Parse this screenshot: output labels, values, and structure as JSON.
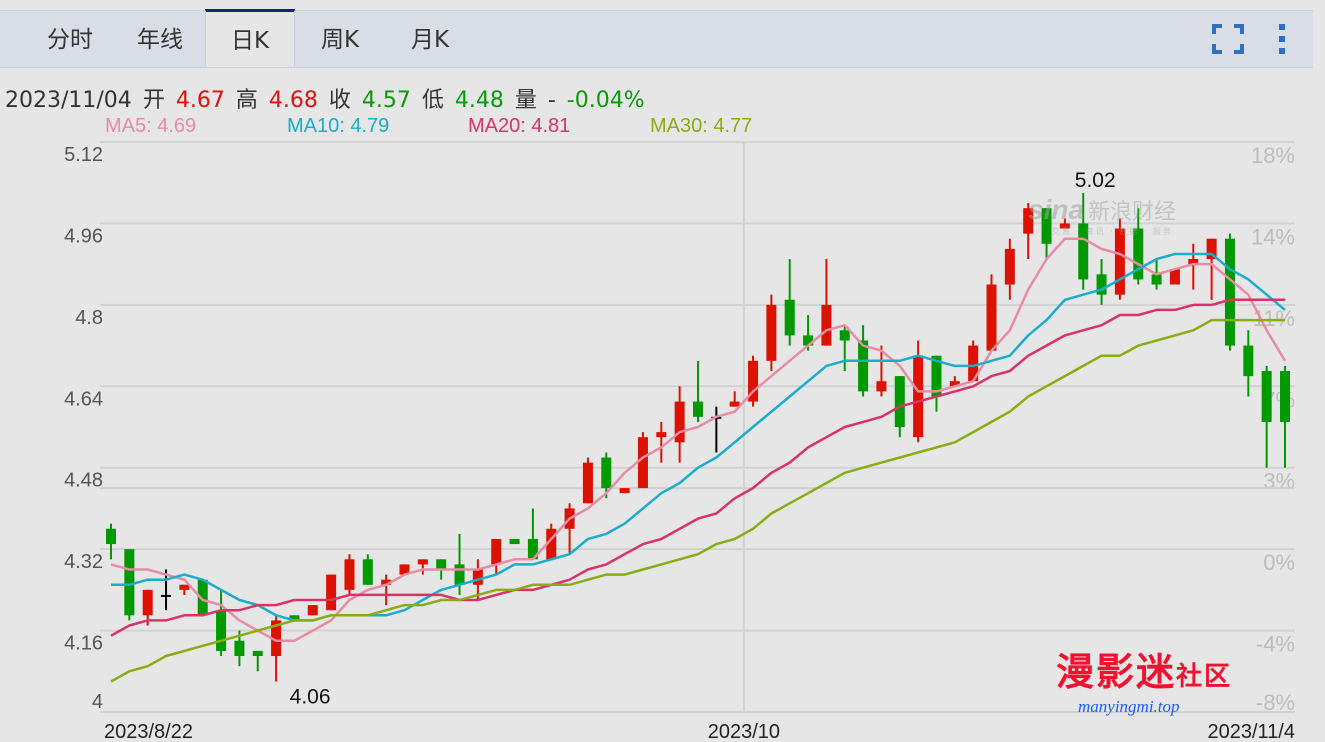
{
  "tabs": [
    {
      "label": "分时",
      "active": false
    },
    {
      "label": "年线",
      "active": false
    },
    {
      "label": "日K",
      "active": true
    },
    {
      "label": "周K",
      "active": false
    },
    {
      "label": "月K",
      "active": false
    }
  ],
  "toolbar": {
    "fullscreen_icon": "fullscreen-icon",
    "more_icon": "kebab-menu-icon",
    "icon_color": "#2f6fc1"
  },
  "info": {
    "date": "2023/11/04",
    "open_label": "开",
    "open": "4.67",
    "high_label": "高",
    "high": "4.68",
    "close_label": "收",
    "close": "4.57",
    "low_label": "低",
    "low": "4.48",
    "volume_label": "量",
    "volume": "-",
    "change": "-0.04%"
  },
  "ma_legend": [
    {
      "label": "MA5: 4.69",
      "color": "#e88ca6"
    },
    {
      "label": "MA10: 4.79",
      "color": "#1aaecb"
    },
    {
      "label": "MA20: 4.81",
      "color": "#d9336a"
    },
    {
      "label": "MA30: 4.77",
      "color": "#8aac14"
    }
  ],
  "watermarks": {
    "sina": "sina",
    "sina_cn": "新浪财经",
    "sina_sub": "交易 · 资讯 · 数据 · 服务",
    "site": "漫影迷",
    "site_suffix": "社区",
    "url": "manyingmi.top"
  },
  "chart_data": {
    "type": "candlestick",
    "title": "",
    "colors": {
      "up": "#dd1100",
      "down": "#009900",
      "flat": "#000000"
    },
    "ylim": [
      4.0,
      5.12
    ],
    "y_ticks": [
      "5.12",
      "4.96",
      "4.8",
      "4.64",
      "4.48",
      "4.32",
      "4.16",
      "4"
    ],
    "y_tick_values": [
      5.12,
      4.96,
      4.8,
      4.64,
      4.48,
      4.32,
      4.16,
      4.0
    ],
    "pct_base": 4.32,
    "pct_ticks": [
      "18%",
      "14%",
      "11%",
      "7%",
      "3%",
      "0%",
      "-4%",
      "-8%"
    ],
    "ref_line": 4.44,
    "x_labels": [
      {
        "label": "2023/8/22",
        "index": 0,
        "align": "left"
      },
      {
        "label": "2023/10",
        "index": 34.5,
        "align": "center",
        "gridline": true
      },
      {
        "label": "2023/11/4",
        "index": 64,
        "align": "right"
      }
    ],
    "annotations": [
      {
        "label": "5.02",
        "index": 53,
        "value": 5.02,
        "type": "max"
      },
      {
        "label": "4.06",
        "index": 9,
        "value": 4.06,
        "type": "min"
      }
    ],
    "ohlc": [
      [
        4.36,
        4.37,
        4.3,
        4.33
      ],
      [
        4.32,
        4.32,
        4.18,
        4.19
      ],
      [
        4.19,
        4.24,
        4.17,
        4.24
      ],
      [
        4.23,
        4.28,
        4.2,
        4.23
      ],
      [
        4.24,
        4.25,
        4.23,
        4.25
      ],
      [
        4.26,
        4.26,
        4.19,
        4.19
      ],
      [
        4.2,
        4.24,
        4.11,
        4.12
      ],
      [
        4.14,
        4.16,
        4.09,
        4.11
      ],
      [
        4.12,
        4.12,
        4.08,
        4.11
      ],
      [
        4.11,
        4.19,
        4.06,
        4.18
      ],
      [
        4.19,
        4.19,
        4.18,
        4.18
      ],
      [
        4.19,
        4.21,
        4.19,
        4.21
      ],
      [
        4.2,
        4.27,
        4.2,
        4.27
      ],
      [
        4.24,
        4.31,
        4.23,
        4.3
      ],
      [
        4.3,
        4.31,
        4.25,
        4.25
      ],
      [
        4.25,
        4.27,
        4.21,
        4.26
      ],
      [
        4.27,
        4.29,
        4.27,
        4.29
      ],
      [
        4.29,
        4.3,
        4.27,
        4.3
      ],
      [
        4.3,
        4.3,
        4.26,
        4.28
      ],
      [
        4.29,
        4.35,
        4.23,
        4.25
      ],
      [
        4.25,
        4.3,
        4.22,
        4.28
      ],
      [
        4.29,
        4.34,
        4.27,
        4.34
      ],
      [
        4.34,
        4.34,
        4.33,
        4.33
      ],
      [
        4.34,
        4.4,
        4.3,
        4.3
      ],
      [
        4.3,
        4.37,
        4.3,
        4.36
      ],
      [
        4.36,
        4.41,
        4.31,
        4.4
      ],
      [
        4.41,
        4.5,
        4.41,
        4.49
      ],
      [
        4.5,
        4.51,
        4.42,
        4.44
      ],
      [
        4.43,
        4.44,
        4.43,
        4.44
      ],
      [
        4.44,
        4.55,
        4.44,
        4.54
      ],
      [
        4.54,
        4.57,
        4.49,
        4.55
      ],
      [
        4.53,
        4.64,
        4.49,
        4.61
      ],
      [
        4.61,
        4.69,
        4.57,
        4.58
      ],
      [
        4.58,
        4.6,
        4.51,
        4.58
      ],
      [
        4.6,
        4.63,
        4.6,
        4.61
      ],
      [
        4.61,
        4.7,
        4.6,
        4.69
      ],
      [
        4.69,
        4.82,
        4.67,
        4.8
      ],
      [
        4.81,
        4.89,
        4.72,
        4.74
      ],
      [
        4.74,
        4.78,
        4.71,
        4.72
      ],
      [
        4.72,
        4.89,
        4.72,
        4.8
      ],
      [
        4.75,
        4.76,
        4.67,
        4.73
      ],
      [
        4.73,
        4.76,
        4.62,
        4.63
      ],
      [
        4.63,
        4.72,
        4.62,
        4.65
      ],
      [
        4.66,
        4.66,
        4.54,
        4.56
      ],
      [
        4.54,
        4.73,
        4.53,
        4.7
      ],
      [
        4.7,
        4.7,
        4.59,
        4.62
      ],
      [
        4.64,
        4.66,
        4.64,
        4.65
      ],
      [
        4.65,
        4.73,
        4.65,
        4.72
      ],
      [
        4.71,
        4.86,
        4.71,
        4.84
      ],
      [
        4.84,
        4.93,
        4.81,
        4.91
      ],
      [
        4.94,
        5.0,
        4.89,
        4.99
      ],
      [
        4.99,
        4.99,
        4.89,
        4.92
      ],
      [
        4.95,
        4.97,
        4.95,
        4.96
      ],
      [
        4.96,
        5.02,
        4.83,
        4.85
      ],
      [
        4.86,
        4.89,
        4.8,
        4.82
      ],
      [
        4.82,
        4.97,
        4.81,
        4.95
      ],
      [
        4.95,
        4.99,
        4.84,
        4.85
      ],
      [
        4.86,
        4.89,
        4.83,
        4.84
      ],
      [
        4.84,
        4.87,
        4.84,
        4.87
      ],
      [
        4.88,
        4.92,
        4.83,
        4.89
      ],
      [
        4.89,
        4.93,
        4.81,
        4.93
      ],
      [
        4.93,
        4.94,
        4.71,
        4.72
      ],
      [
        4.72,
        4.75,
        4.62,
        4.66
      ],
      [
        4.67,
        4.68,
        4.48,
        4.57
      ],
      [
        4.67,
        4.68,
        4.48,
        4.57
      ]
    ],
    "ma": [
      {
        "name": "MA5",
        "color": "#e88ca6",
        "values": [
          4.29,
          4.28,
          4.28,
          4.27,
          4.26,
          4.22,
          4.21,
          4.18,
          4.16,
          4.14,
          4.14,
          4.16,
          4.18,
          4.22,
          4.24,
          4.25,
          4.27,
          4.28,
          4.28,
          4.28,
          4.28,
          4.29,
          4.3,
          4.3,
          4.34,
          4.38,
          4.4,
          4.43,
          4.47,
          4.5,
          4.52,
          4.55,
          4.56,
          4.58,
          4.59,
          4.63,
          4.66,
          4.69,
          4.72,
          4.75,
          4.76,
          4.72,
          4.71,
          4.68,
          4.63,
          4.63,
          4.64,
          4.65,
          4.71,
          4.75,
          4.83,
          4.89,
          4.93,
          4.93,
          4.91,
          4.9,
          4.88,
          4.86,
          4.87,
          4.88,
          4.88,
          4.85,
          4.82,
          4.75,
          4.69
        ]
      },
      {
        "name": "MA10",
        "color": "#1aaecb",
        "values": [
          4.25,
          4.25,
          4.26,
          4.26,
          4.27,
          4.26,
          4.24,
          4.22,
          4.21,
          4.19,
          4.18,
          4.18,
          4.19,
          4.19,
          4.19,
          4.19,
          4.2,
          4.22,
          4.24,
          4.25,
          4.26,
          4.27,
          4.29,
          4.29,
          4.3,
          4.31,
          4.34,
          4.35,
          4.37,
          4.4,
          4.43,
          4.45,
          4.48,
          4.5,
          4.53,
          4.56,
          4.59,
          4.62,
          4.65,
          4.68,
          4.69,
          4.69,
          4.69,
          4.69,
          4.7,
          4.69,
          4.68,
          4.68,
          4.69,
          4.7,
          4.74,
          4.77,
          4.81,
          4.82,
          4.83,
          4.85,
          4.87,
          4.89,
          4.9,
          4.9,
          4.9,
          4.87,
          4.85,
          4.82,
          4.79
        ]
      },
      {
        "name": "MA20",
        "color": "#d9336a",
        "values": [
          4.15,
          4.17,
          4.18,
          4.18,
          4.19,
          4.19,
          4.2,
          4.2,
          4.21,
          4.21,
          4.22,
          4.22,
          4.22,
          4.23,
          4.23,
          4.23,
          4.23,
          4.23,
          4.23,
          4.22,
          4.22,
          4.23,
          4.24,
          4.24,
          4.25,
          4.26,
          4.28,
          4.29,
          4.31,
          4.33,
          4.34,
          4.36,
          4.38,
          4.39,
          4.42,
          4.44,
          4.47,
          4.49,
          4.52,
          4.54,
          4.56,
          4.57,
          4.58,
          4.6,
          4.61,
          4.62,
          4.63,
          4.64,
          4.66,
          4.67,
          4.7,
          4.72,
          4.74,
          4.75,
          4.76,
          4.78,
          4.78,
          4.79,
          4.79,
          4.8,
          4.8,
          4.81,
          4.81,
          4.81,
          4.81
        ]
      },
      {
        "name": "MA30",
        "color": "#8aac14",
        "values": [
          4.06,
          4.08,
          4.09,
          4.11,
          4.12,
          4.13,
          4.14,
          4.15,
          4.16,
          4.17,
          4.18,
          4.18,
          4.19,
          4.19,
          4.19,
          4.2,
          4.21,
          4.21,
          4.22,
          4.22,
          4.23,
          4.24,
          4.24,
          4.25,
          4.25,
          4.25,
          4.26,
          4.27,
          4.27,
          4.28,
          4.29,
          4.3,
          4.31,
          4.33,
          4.34,
          4.36,
          4.39,
          4.41,
          4.43,
          4.45,
          4.47,
          4.48,
          4.49,
          4.5,
          4.51,
          4.52,
          4.53,
          4.55,
          4.57,
          4.59,
          4.62,
          4.64,
          4.66,
          4.68,
          4.7,
          4.7,
          4.72,
          4.73,
          4.74,
          4.75,
          4.77,
          4.77,
          4.77,
          4.77,
          4.77
        ]
      }
    ]
  }
}
